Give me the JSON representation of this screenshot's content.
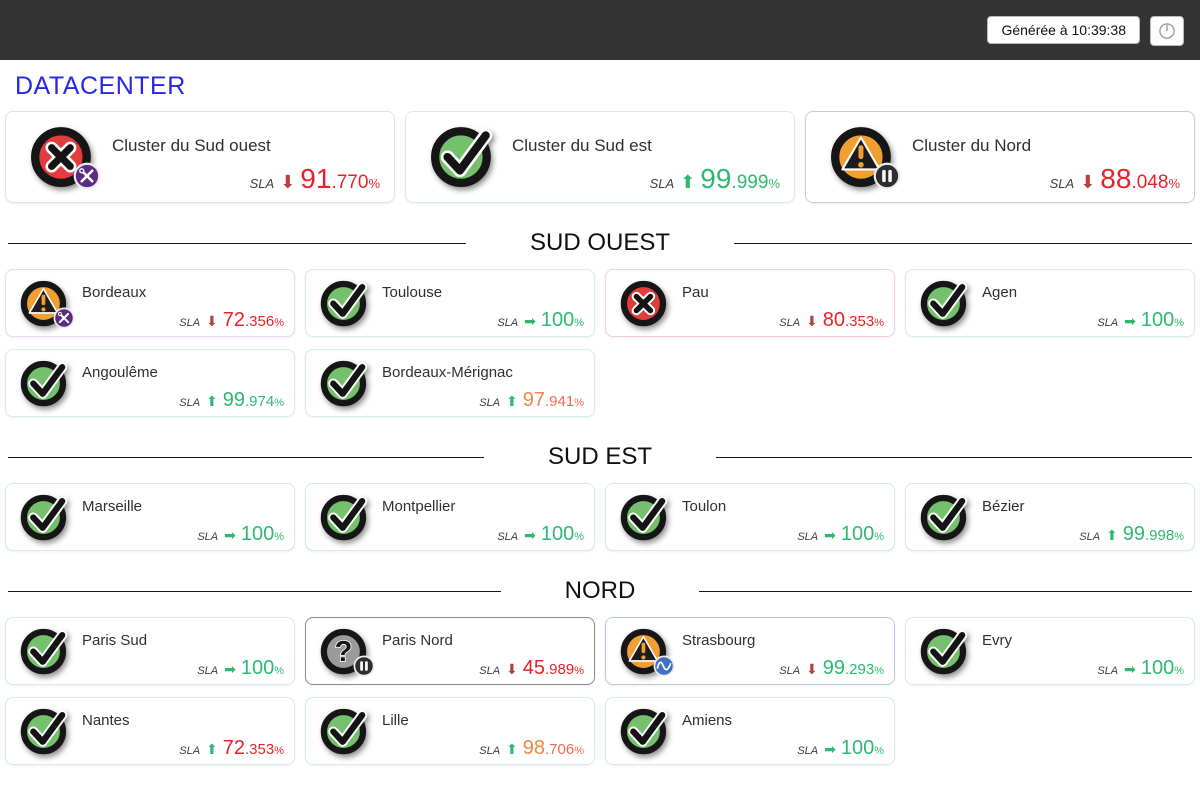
{
  "topbar": {
    "generated_button": "Générée à 10:39:38",
    "refresh_icon": "clock-icon"
  },
  "page_title": "DATACENTER",
  "labels": {
    "sla": "SLA",
    "unit": "%"
  },
  "palette": {
    "green": "#2eb872",
    "red": "#e32328",
    "orange": "#ef8743",
    "salmon": "#f2694f",
    "darkred": "#b5413c"
  },
  "clusters": [
    {
      "name": "Cluster du Sud ouest",
      "status": "critical",
      "badge": "wrench",
      "border": "#f0d6ee",
      "sla": {
        "trend": "down",
        "int": "91",
        "frac": ".770",
        "value_color": "red",
        "frac_color": "red",
        "arrow_color": "darkred"
      }
    },
    {
      "name": "Cluster du Sud est",
      "status": "ok",
      "badge": null,
      "border": "#d6eedd",
      "sla": {
        "trend": "up",
        "int": "99",
        "frac": ".999",
        "value_color": "green",
        "frac_color": "green",
        "arrow_color": "green"
      }
    },
    {
      "name": "Cluster du Nord",
      "status": "warning",
      "badge": "pause",
      "border": "#cccccc",
      "sla": {
        "trend": "down",
        "int": "88",
        "frac": ".048",
        "value_color": "red",
        "frac_color": "red",
        "arrow_color": "darkred"
      }
    }
  ],
  "sections": [
    {
      "title": "SUD OUEST",
      "hosts": [
        {
          "name": "Bordeaux",
          "status": "warning",
          "badge": "wrench",
          "border": "#f0d6ee",
          "sla": {
            "trend": "down",
            "int": "72",
            "frac": ".356",
            "value_color": "red",
            "frac_color": "red",
            "arrow_color": "darkred"
          }
        },
        {
          "name": "Toulouse",
          "status": "ok",
          "badge": null,
          "border": "#d6eedd",
          "sla": {
            "trend": "steady",
            "int": "100",
            "frac": "",
            "value_color": "green",
            "frac_color": "green",
            "arrow_color": "green"
          }
        },
        {
          "name": "Pau",
          "status": "critical",
          "badge": null,
          "border": "#f5cfcf",
          "sla": {
            "trend": "down",
            "int": "80",
            "frac": ".353",
            "value_color": "red",
            "frac_color": "red",
            "arrow_color": "darkred"
          }
        },
        {
          "name": "Agen",
          "status": "ok",
          "badge": null,
          "border": "#d6eedd",
          "sla": {
            "trend": "steady",
            "int": "100",
            "frac": "",
            "value_color": "green",
            "frac_color": "green",
            "arrow_color": "green"
          }
        },
        {
          "name": "Angoulême",
          "status": "ok",
          "badge": null,
          "border": "#d6eedd",
          "sla": {
            "trend": "up",
            "int": "99",
            "frac": ".974",
            "value_color": "green",
            "frac_color": "green",
            "arrow_color": "green"
          }
        },
        {
          "name": "Bordeaux-Mérignac",
          "status": "ok",
          "badge": null,
          "border": "#d6eedd",
          "sla": {
            "trend": "up",
            "int": "97",
            "frac": ".941",
            "value_color": "orange",
            "frac_color": "salmon",
            "arrow_color": "green"
          }
        }
      ]
    },
    {
      "title": "SUD EST",
      "hosts": [
        {
          "name": "Marseille",
          "status": "ok",
          "badge": null,
          "border": "#d6eedd",
          "sla": {
            "trend": "steady",
            "int": "100",
            "frac": "",
            "value_color": "green",
            "frac_color": "green",
            "arrow_color": "green"
          }
        },
        {
          "name": "Montpellier",
          "status": "ok",
          "badge": null,
          "border": "#d6eedd",
          "sla": {
            "trend": "steady",
            "int": "100",
            "frac": "",
            "value_color": "green",
            "frac_color": "green",
            "arrow_color": "green"
          }
        },
        {
          "name": "Toulon",
          "status": "ok",
          "badge": null,
          "border": "#d6eedd",
          "sla": {
            "trend": "steady",
            "int": "100",
            "frac": "",
            "value_color": "green",
            "frac_color": "green",
            "arrow_color": "green"
          }
        },
        {
          "name": "Bézier",
          "status": "ok",
          "badge": null,
          "border": "#d6eedd",
          "sla": {
            "trend": "up",
            "int": "99",
            "frac": ".998",
            "value_color": "green",
            "frac_color": "green",
            "arrow_color": "green"
          }
        }
      ]
    },
    {
      "title": "NORD",
      "hosts": [
        {
          "name": "Paris Sud",
          "status": "ok",
          "badge": null,
          "border": "#d6eedd",
          "sla": {
            "trend": "steady",
            "int": "100",
            "frac": "",
            "value_color": "green",
            "frac_color": "green",
            "arrow_color": "green"
          }
        },
        {
          "name": "Paris Nord",
          "status": "unknown",
          "badge": "pause",
          "border": "#8a8a8a",
          "sla": {
            "trend": "down",
            "int": "45",
            "frac": ".989",
            "value_color": "red",
            "frac_color": "red",
            "arrow_color": "darkred"
          }
        },
        {
          "name": "Strasbourg",
          "status": "warning",
          "badge": "flap",
          "border": "#b9c7e6",
          "sla": {
            "trend": "down",
            "int": "99",
            "frac": ".293",
            "value_color": "green",
            "frac_color": "green",
            "arrow_color": "darkred"
          }
        },
        {
          "name": "Evry",
          "status": "ok",
          "badge": null,
          "border": "#d6eedd",
          "sla": {
            "trend": "steady",
            "int": "100",
            "frac": "",
            "value_color": "green",
            "frac_color": "green",
            "arrow_color": "green"
          }
        },
        {
          "name": "Nantes",
          "status": "ok",
          "badge": null,
          "border": "#d6eedd",
          "sla": {
            "trend": "up",
            "int": "72",
            "frac": ".353",
            "value_color": "red",
            "frac_color": "red",
            "arrow_color": "green"
          }
        },
        {
          "name": "Lille",
          "status": "ok",
          "badge": null,
          "border": "#d6eedd",
          "sla": {
            "trend": "up",
            "int": "98",
            "frac": ".706",
            "value_color": "orange",
            "frac_color": "salmon",
            "arrow_color": "green"
          }
        },
        {
          "name": "Amiens",
          "status": "ok",
          "badge": null,
          "border": "#d6eedd",
          "sla": {
            "trend": "steady",
            "int": "100",
            "frac": "",
            "value_color": "green",
            "frac_color": "green",
            "arrow_color": "green"
          }
        }
      ]
    }
  ]
}
